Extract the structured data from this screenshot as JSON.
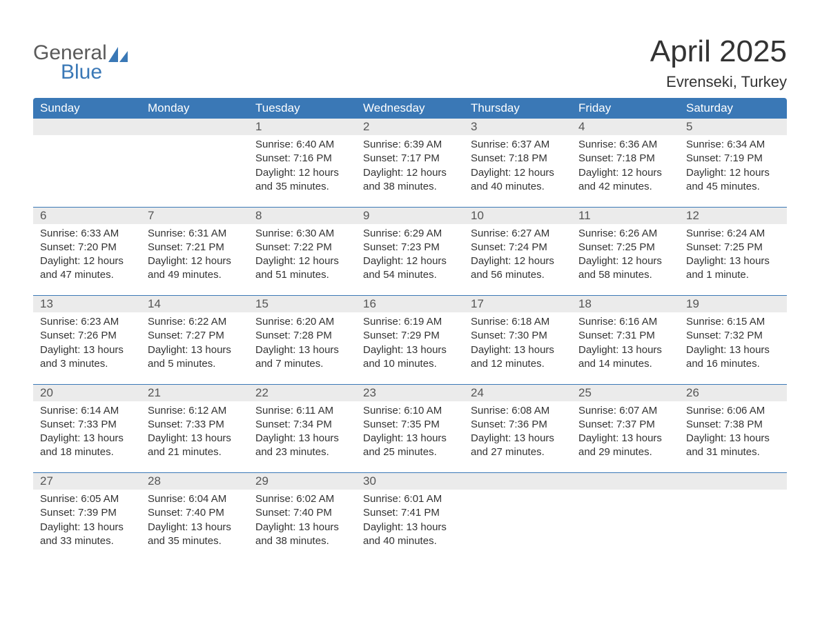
{
  "logo": {
    "word1": "General",
    "word2": "Blue",
    "sail_color": "#3a78b6",
    "text_gray": "#5a5a5a"
  },
  "title": "April 2025",
  "subtitle": "Evrenseki, Turkey",
  "colors": {
    "header_bg": "#3a78b6",
    "header_text": "#ffffff",
    "daynum_bg": "#ebebeb",
    "page_bg": "#ffffff",
    "body_text": "#333333",
    "week_border": "#3a78b6"
  },
  "day_headers": [
    "Sunday",
    "Monday",
    "Tuesday",
    "Wednesday",
    "Thursday",
    "Friday",
    "Saturday"
  ],
  "weeks": [
    [
      {
        "n": "",
        "sunrise": "",
        "sunset": "",
        "daylight": "",
        "empty": true
      },
      {
        "n": "",
        "sunrise": "",
        "sunset": "",
        "daylight": "",
        "empty": true
      },
      {
        "n": "1",
        "sunrise": "Sunrise: 6:40 AM",
        "sunset": "Sunset: 7:16 PM",
        "daylight": "Daylight: 12 hours and 35 minutes."
      },
      {
        "n": "2",
        "sunrise": "Sunrise: 6:39 AM",
        "sunset": "Sunset: 7:17 PM",
        "daylight": "Daylight: 12 hours and 38 minutes."
      },
      {
        "n": "3",
        "sunrise": "Sunrise: 6:37 AM",
        "sunset": "Sunset: 7:18 PM",
        "daylight": "Daylight: 12 hours and 40 minutes."
      },
      {
        "n": "4",
        "sunrise": "Sunrise: 6:36 AM",
        "sunset": "Sunset: 7:18 PM",
        "daylight": "Daylight: 12 hours and 42 minutes."
      },
      {
        "n": "5",
        "sunrise": "Sunrise: 6:34 AM",
        "sunset": "Sunset: 7:19 PM",
        "daylight": "Daylight: 12 hours and 45 minutes."
      }
    ],
    [
      {
        "n": "6",
        "sunrise": "Sunrise: 6:33 AM",
        "sunset": "Sunset: 7:20 PM",
        "daylight": "Daylight: 12 hours and 47 minutes."
      },
      {
        "n": "7",
        "sunrise": "Sunrise: 6:31 AM",
        "sunset": "Sunset: 7:21 PM",
        "daylight": "Daylight: 12 hours and 49 minutes."
      },
      {
        "n": "8",
        "sunrise": "Sunrise: 6:30 AM",
        "sunset": "Sunset: 7:22 PM",
        "daylight": "Daylight: 12 hours and 51 minutes."
      },
      {
        "n": "9",
        "sunrise": "Sunrise: 6:29 AM",
        "sunset": "Sunset: 7:23 PM",
        "daylight": "Daylight: 12 hours and 54 minutes."
      },
      {
        "n": "10",
        "sunrise": "Sunrise: 6:27 AM",
        "sunset": "Sunset: 7:24 PM",
        "daylight": "Daylight: 12 hours and 56 minutes."
      },
      {
        "n": "11",
        "sunrise": "Sunrise: 6:26 AM",
        "sunset": "Sunset: 7:25 PM",
        "daylight": "Daylight: 12 hours and 58 minutes."
      },
      {
        "n": "12",
        "sunrise": "Sunrise: 6:24 AM",
        "sunset": "Sunset: 7:25 PM",
        "daylight": "Daylight: 13 hours and 1 minute."
      }
    ],
    [
      {
        "n": "13",
        "sunrise": "Sunrise: 6:23 AM",
        "sunset": "Sunset: 7:26 PM",
        "daylight": "Daylight: 13 hours and 3 minutes."
      },
      {
        "n": "14",
        "sunrise": "Sunrise: 6:22 AM",
        "sunset": "Sunset: 7:27 PM",
        "daylight": "Daylight: 13 hours and 5 minutes."
      },
      {
        "n": "15",
        "sunrise": "Sunrise: 6:20 AM",
        "sunset": "Sunset: 7:28 PM",
        "daylight": "Daylight: 13 hours and 7 minutes."
      },
      {
        "n": "16",
        "sunrise": "Sunrise: 6:19 AM",
        "sunset": "Sunset: 7:29 PM",
        "daylight": "Daylight: 13 hours and 10 minutes."
      },
      {
        "n": "17",
        "sunrise": "Sunrise: 6:18 AM",
        "sunset": "Sunset: 7:30 PM",
        "daylight": "Daylight: 13 hours and 12 minutes."
      },
      {
        "n": "18",
        "sunrise": "Sunrise: 6:16 AM",
        "sunset": "Sunset: 7:31 PM",
        "daylight": "Daylight: 13 hours and 14 minutes."
      },
      {
        "n": "19",
        "sunrise": "Sunrise: 6:15 AM",
        "sunset": "Sunset: 7:32 PM",
        "daylight": "Daylight: 13 hours and 16 minutes."
      }
    ],
    [
      {
        "n": "20",
        "sunrise": "Sunrise: 6:14 AM",
        "sunset": "Sunset: 7:33 PM",
        "daylight": "Daylight: 13 hours and 18 minutes."
      },
      {
        "n": "21",
        "sunrise": "Sunrise: 6:12 AM",
        "sunset": "Sunset: 7:33 PM",
        "daylight": "Daylight: 13 hours and 21 minutes."
      },
      {
        "n": "22",
        "sunrise": "Sunrise: 6:11 AM",
        "sunset": "Sunset: 7:34 PM",
        "daylight": "Daylight: 13 hours and 23 minutes."
      },
      {
        "n": "23",
        "sunrise": "Sunrise: 6:10 AM",
        "sunset": "Sunset: 7:35 PM",
        "daylight": "Daylight: 13 hours and 25 minutes."
      },
      {
        "n": "24",
        "sunrise": "Sunrise: 6:08 AM",
        "sunset": "Sunset: 7:36 PM",
        "daylight": "Daylight: 13 hours and 27 minutes."
      },
      {
        "n": "25",
        "sunrise": "Sunrise: 6:07 AM",
        "sunset": "Sunset: 7:37 PM",
        "daylight": "Daylight: 13 hours and 29 minutes."
      },
      {
        "n": "26",
        "sunrise": "Sunrise: 6:06 AM",
        "sunset": "Sunset: 7:38 PM",
        "daylight": "Daylight: 13 hours and 31 minutes."
      }
    ],
    [
      {
        "n": "27",
        "sunrise": "Sunrise: 6:05 AM",
        "sunset": "Sunset: 7:39 PM",
        "daylight": "Daylight: 13 hours and 33 minutes."
      },
      {
        "n": "28",
        "sunrise": "Sunrise: 6:04 AM",
        "sunset": "Sunset: 7:40 PM",
        "daylight": "Daylight: 13 hours and 35 minutes."
      },
      {
        "n": "29",
        "sunrise": "Sunrise: 6:02 AM",
        "sunset": "Sunset: 7:40 PM",
        "daylight": "Daylight: 13 hours and 38 minutes."
      },
      {
        "n": "30",
        "sunrise": "Sunrise: 6:01 AM",
        "sunset": "Sunset: 7:41 PM",
        "daylight": "Daylight: 13 hours and 40 minutes."
      },
      {
        "n": "",
        "sunrise": "",
        "sunset": "",
        "daylight": "",
        "empty": true
      },
      {
        "n": "",
        "sunrise": "",
        "sunset": "",
        "daylight": "",
        "empty": true
      },
      {
        "n": "",
        "sunrise": "",
        "sunset": "",
        "daylight": "",
        "empty": true
      }
    ]
  ]
}
